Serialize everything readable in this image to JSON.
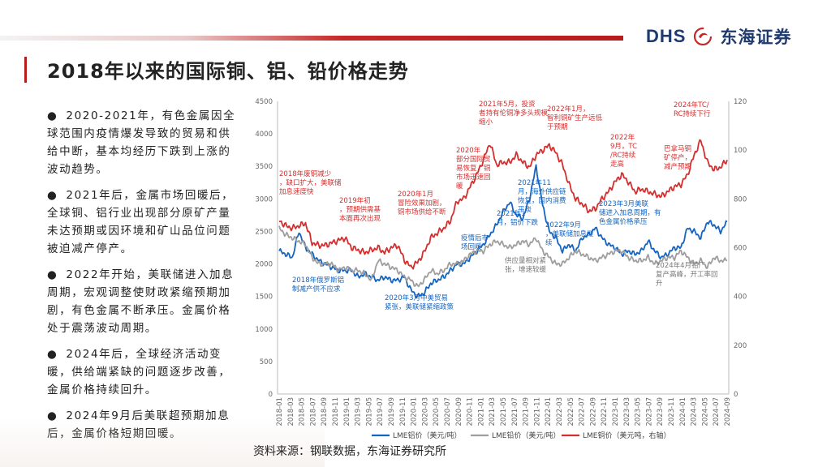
{
  "header": {
    "title": "2018年以来的国际铜、铝、铅价格走势",
    "logo_en": "DHS",
    "logo_cn": "东海证券"
  },
  "bullets": [
    {
      "mark": "●",
      "text": "2020-2021年，有色金属因全球范围内疫情爆发导致的贸易和供给中断，基本均经历下跌到上涨的波动趋势。"
    },
    {
      "mark": "●",
      "text": "2021年后，金属市场回暖后，全球铜、铝行业出现部分原矿产量未达预期或因环境和矿山品位问题被迫减产停产。"
    },
    {
      "mark": "●",
      "text": "2022年开始，美联储进入加息周期，宏观调整使财政紧缩预期加剧，有色金属不断承压。金属价格处于震荡波动周期。"
    },
    {
      "mark": "●",
      "text": "2024年后，全球经济活动变暖，供给端紧缺的问题逐步改善，金属价格持续回升。"
    },
    {
      "mark": "●",
      "text": "2024年9月后美联超预期加息后，金属价格短期回暖。"
    }
  ],
  "source": "资料来源：钢联数据，东海证券研究所",
  "colors": {
    "aluminum": "#1565c0",
    "lead": "#9e9e9e",
    "copper": "#d32f2f",
    "accent": "#b71c1c",
    "brand": "#1f3a6e"
  },
  "chart_data": {
    "type": "line",
    "title": "",
    "x_start": "2018-01",
    "x_end": "2024-11",
    "xtick_labels": [
      "2018-01",
      "2018-03",
      "2018-05",
      "2018-07",
      "2018-09",
      "2018-11",
      "2019-01",
      "2019-03",
      "2019-05",
      "2019-07",
      "2019-09",
      "2019-11",
      "2020-01",
      "2020-03",
      "2020-05",
      "2020-07",
      "2020-09",
      "2020-11",
      "2021-01",
      "2021-03",
      "2021-05",
      "2021-07",
      "2021-09",
      "2021-11",
      "2022-01",
      "2022-03",
      "2022-05",
      "2022-07",
      "2022-09",
      "2022-11",
      "2023-01",
      "2023-03",
      "2023-05",
      "2023-07",
      "2023-09",
      "2023-11",
      "2024-01",
      "2024-03",
      "2024-05",
      "2024-07",
      "2024-09"
    ],
    "y_left": {
      "ylim": [
        0,
        4500
      ],
      "ticks": [
        0,
        500,
        1000,
        1500,
        2000,
        2500,
        3000,
        3500,
        4000,
        4500
      ]
    },
    "y_right": {
      "ylim": [
        0,
        12000
      ],
      "ticks": [
        0,
        2000,
        4000,
        6000,
        8000,
        10000,
        12000
      ]
    },
    "series": [
      {
        "name": "LME铝价（美元/吨）",
        "axis": "left",
        "color": "#1565c0",
        "values": [
          2200,
          2150,
          2100,
          2500,
          2250,
          2150,
          2050,
          2000,
          1950,
          1900,
          1900,
          1900,
          1800,
          1850,
          1800,
          1750,
          1800,
          1750,
          1750,
          1800,
          1600,
          1500,
          1550,
          1700,
          1750,
          1800,
          1900,
          2000,
          2000,
          2100,
          2200,
          2300,
          2450,
          2600,
          2800,
          2950,
          2750,
          2700,
          3000,
          3500,
          2900,
          2500,
          2400,
          2200,
          2300,
          2200,
          2400,
          2450,
          2550,
          2400,
          2300,
          2250,
          2150,
          2200,
          2150,
          2200,
          2350,
          2200,
          2100,
          2150,
          2250,
          2250,
          2550,
          2500,
          2400,
          2650,
          2600,
          2500,
          2650
        ]
      },
      {
        "name": "LME铅价（美元/吨）",
        "axis": "left",
        "color": "#9e9e9e",
        "values": [
          2550,
          2450,
          2400,
          2350,
          2300,
          2100,
          2000,
          2000,
          2000,
          1900,
          1950,
          1900,
          1900,
          1850,
          1750,
          2050,
          2000,
          1950,
          1900,
          1800,
          1750,
          1650,
          1750,
          1900,
          1850,
          1900,
          2000,
          2000,
          2050,
          2150,
          2200,
          2200,
          2300,
          2350,
          2300,
          2250,
          2300,
          2350,
          2300,
          2400,
          2200,
          2100,
          2000,
          2000,
          2100,
          2200,
          2150,
          2100,
          2050,
          2100,
          2150,
          2200,
          2200,
          2100,
          2050,
          2050,
          2100,
          2000,
          2050,
          2100,
          2100,
          2200,
          2100,
          2000,
          2050,
          1950,
          2100,
          2050,
          2050
        ]
      },
      {
        "name": "LME铜价（美元吨，右轴）",
        "axis": "right",
        "color": "#d32f2f",
        "values": [
          7100,
          6900,
          6800,
          6900,
          7000,
          6200,
          6100,
          6100,
          6200,
          6300,
          6400,
          6000,
          5900,
          5800,
          5900,
          6000,
          5800,
          6000,
          6100,
          5500,
          5200,
          5400,
          5800,
          6400,
          6600,
          6800,
          7100,
          7900,
          8000,
          8500,
          9000,
          9600,
          10300,
          9400,
          9500,
          9500,
          9800,
          9500,
          9300,
          9800,
          10000,
          10200,
          9900,
          9400,
          8600,
          8000,
          7800,
          7500,
          7600,
          8000,
          8300,
          8700,
          9000,
          8700,
          8300,
          8400,
          8300,
          8200,
          8100,
          8300,
          8500,
          8600,
          9000,
          9800,
          10400,
          9500,
          9200,
          9300,
          9600
        ]
      }
    ],
    "annotations": [
      {
        "text": "2018年废铜减少，缺口扩大，美联储加息速度快",
        "series": "copper"
      },
      {
        "text": "2018年俄罗斯铝制减产供不应求",
        "series": "aluminum"
      },
      {
        "text": "2019年初，预期供需基本面再次出现",
        "series": "copper"
      },
      {
        "text": "2020年1月冒险效果加剧，铜市场供给不断",
        "series": "copper"
      },
      {
        "text": "2020年3月中美贸易紧张，美联储紧缩政策",
        "series": "aluminum"
      },
      {
        "text": "2020年部分国际贸易恢复，铜市场迅速回暖",
        "series": "copper"
      },
      {
        "text": "疫情后市场回暖",
        "series": "aluminum"
      },
      {
        "text": "2021年5月，投资者持有伦铜净多头规模缩小",
        "series": "copper"
      },
      {
        "text": "2021年11月，海外供应链恢复，国内消费平淡",
        "series": "aluminum"
      },
      {
        "text": "2021年1月，铝价下跌",
        "series": "aluminum"
      },
      {
        "text": "供应量相对紧张，增速较缓",
        "series": "lead"
      },
      {
        "text": "2022年1月，智利铜矿生产远低于预期",
        "series": "copper"
      },
      {
        "text": "2022年9月，美联储加息继续",
        "series": "aluminum"
      },
      {
        "text": "2022年9月，TC/RC持续走高",
        "series": "copper"
      },
      {
        "text": "2023年3月美联储进入加息周期，有色金属价格承压",
        "series": "aluminum"
      },
      {
        "text": "巴拿马铜矿停产，减产预期",
        "series": "copper"
      },
      {
        "text": "2024年TC/RC持续下行",
        "series": "copper"
      },
      {
        "text": "2024年4月铅厂复产高峰，开工率回升",
        "series": "lead"
      }
    ],
    "legend_position": "bottom"
  }
}
